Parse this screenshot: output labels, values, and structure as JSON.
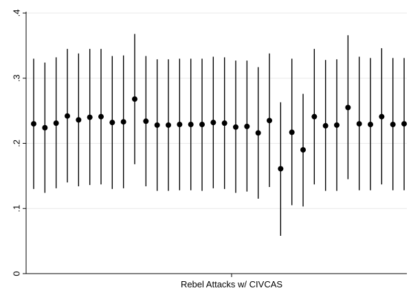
{
  "chart_data": {
    "type": "scatter",
    "subtype": "point-estimates-with-confidence-intervals",
    "title": "",
    "xlabel": "Rebel Attacks w/ CIVCAS",
    "ylabel": "",
    "ylim": [
      0,
      0.4
    ],
    "yticks": [
      0,
      0.1,
      0.2,
      0.3,
      0.4
    ],
    "ytick_labels": [
      "0",
      ".1",
      ".2",
      ".3",
      ".4"
    ],
    "grid": "horizontal",
    "legend": "none",
    "colors": {
      "marker": "#000000",
      "ci": "#000000",
      "grid": "#e8e8e8",
      "axis": "#000000"
    },
    "points": [
      {
        "x": 1,
        "y": 0.23,
        "lo": 0.13,
        "hi": 0.33
      },
      {
        "x": 2,
        "y": 0.224,
        "lo": 0.124,
        "hi": 0.324
      },
      {
        "x": 3,
        "y": 0.231,
        "lo": 0.131,
        "hi": 0.332
      },
      {
        "x": 4,
        "y": 0.242,
        "lo": 0.14,
        "hi": 0.345
      },
      {
        "x": 5,
        "y": 0.236,
        "lo": 0.134,
        "hi": 0.338
      },
      {
        "x": 6,
        "y": 0.24,
        "lo": 0.136,
        "hi": 0.345
      },
      {
        "x": 7,
        "y": 0.241,
        "lo": 0.137,
        "hi": 0.345
      },
      {
        "x": 8,
        "y": 0.232,
        "lo": 0.13,
        "hi": 0.334
      },
      {
        "x": 9,
        "y": 0.233,
        "lo": 0.131,
        "hi": 0.335
      },
      {
        "x": 10,
        "y": 0.268,
        "lo": 0.168,
        "hi": 0.368
      },
      {
        "x": 11,
        "y": 0.234,
        "lo": 0.134,
        "hi": 0.334
      },
      {
        "x": 12,
        "y": 0.228,
        "lo": 0.127,
        "hi": 0.329
      },
      {
        "x": 13,
        "y": 0.228,
        "lo": 0.127,
        "hi": 0.329
      },
      {
        "x": 14,
        "y": 0.229,
        "lo": 0.128,
        "hi": 0.33
      },
      {
        "x": 15,
        "y": 0.229,
        "lo": 0.128,
        "hi": 0.33
      },
      {
        "x": 16,
        "y": 0.229,
        "lo": 0.127,
        "hi": 0.33
      },
      {
        "x": 17,
        "y": 0.232,
        "lo": 0.131,
        "hi": 0.333
      },
      {
        "x": 18,
        "y": 0.231,
        "lo": 0.13,
        "hi": 0.332
      },
      {
        "x": 19,
        "y": 0.225,
        "lo": 0.124,
        "hi": 0.327
      },
      {
        "x": 20,
        "y": 0.226,
        "lo": 0.126,
        "hi": 0.327
      },
      {
        "x": 21,
        "y": 0.216,
        "lo": 0.115,
        "hi": 0.317
      },
      {
        "x": 22,
        "y": 0.235,
        "lo": 0.133,
        "hi": 0.338
      },
      {
        "x": 23,
        "y": 0.161,
        "lo": 0.058,
        "hi": 0.263
      },
      {
        "x": 24,
        "y": 0.217,
        "lo": 0.105,
        "hi": 0.33
      },
      {
        "x": 25,
        "y": 0.19,
        "lo": 0.103,
        "hi": 0.276
      },
      {
        "x": 26,
        "y": 0.241,
        "lo": 0.137,
        "hi": 0.345
      },
      {
        "x": 27,
        "y": 0.227,
        "lo": 0.127,
        "hi": 0.328
      },
      {
        "x": 28,
        "y": 0.228,
        "lo": 0.127,
        "hi": 0.329
      },
      {
        "x": 29,
        "y": 0.255,
        "lo": 0.145,
        "hi": 0.366
      },
      {
        "x": 30,
        "y": 0.23,
        "lo": 0.128,
        "hi": 0.333
      },
      {
        "x": 31,
        "y": 0.229,
        "lo": 0.128,
        "hi": 0.331
      },
      {
        "x": 32,
        "y": 0.241,
        "lo": 0.137,
        "hi": 0.346
      },
      {
        "x": 33,
        "y": 0.229,
        "lo": 0.128,
        "hi": 0.331
      },
      {
        "x": 34,
        "y": 0.23,
        "lo": 0.128,
        "hi": 0.331
      }
    ]
  }
}
